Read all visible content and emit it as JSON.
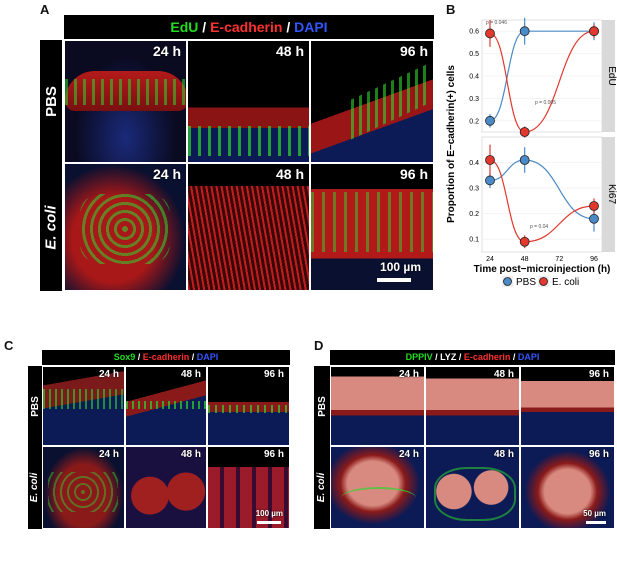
{
  "panels": {
    "A": {
      "label": "A",
      "title": [
        {
          "text": "EdU",
          "color": "#22dd22"
        },
        {
          "text": " / ",
          "color": "#ffffff"
        },
        {
          "text": "E-cadherin",
          "color": "#ff3030"
        },
        {
          "text": " / ",
          "color": "#ffffff"
        },
        {
          "text": "DAPI",
          "color": "#3355ff"
        }
      ],
      "rows": [
        "PBS",
        "E. coli"
      ],
      "times": [
        "24 h",
        "48 h",
        "96 h"
      ],
      "scalebar": "100 µm"
    },
    "B": {
      "label": "B",
      "facet_top": "EdU",
      "facet_bottom": "Ki67",
      "ylabel": "Proportion of E−cadherin(+) cells",
      "xlabel": "Time post−microinjection (h)",
      "pvalues": {
        "edu_24": "p = 0.046",
        "edu_48": "p = 0.005",
        "ki_48": "p = 0.04"
      },
      "legend": [
        "PBS",
        "E. coli"
      ]
    },
    "C": {
      "label": "C",
      "title": [
        {
          "text": "Sox9",
          "color": "#22dd22"
        },
        {
          "text": " / ",
          "color": "#ffffff"
        },
        {
          "text": "E-cadherin",
          "color": "#ff3030"
        },
        {
          "text": " / ",
          "color": "#ffffff"
        },
        {
          "text": "DAPI",
          "color": "#3355ff"
        }
      ],
      "rows": [
        "PBS",
        "E. coli"
      ],
      "times": [
        "24 h",
        "48 h",
        "96 h"
      ],
      "scalebar": "100 µm"
    },
    "D": {
      "label": "D",
      "title": [
        {
          "text": "DPPIV",
          "color": "#22dd22"
        },
        {
          "text": " / ",
          "color": "#ffffff"
        },
        {
          "text": "LYZ",
          "color": "#ffffff"
        },
        {
          "text": " / ",
          "color": "#ffffff"
        },
        {
          "text": "E-cadherin",
          "color": "#ff3030"
        },
        {
          "text": " / ",
          "color": "#ffffff"
        },
        {
          "text": "DAPI",
          "color": "#3355ff"
        }
      ],
      "rows": [
        "PBS",
        "E. coli"
      ],
      "times": [
        "24 h",
        "48 h",
        "96 h"
      ],
      "scalebar": "50 µm"
    }
  },
  "chart_data": [
    {
      "type": "line",
      "title": "",
      "facet": "EdU",
      "x": [
        24,
        48,
        96
      ],
      "xticks": [
        24,
        48,
        72,
        96
      ],
      "ylim": [
        0.15,
        0.65
      ],
      "yticks": [
        0.2,
        0.3,
        0.4,
        0.5,
        0.6
      ],
      "series": [
        {
          "name": "PBS",
          "color": "#4a8ac6",
          "values": [
            0.2,
            0.6,
            0.6
          ],
          "err": [
            0.03,
            0.06,
            0.04
          ]
        },
        {
          "name": "E. coli",
          "color": "#e2382e",
          "values": [
            0.59,
            0.15,
            0.6
          ],
          "err": [
            0.06,
            0.025,
            0.03
          ]
        }
      ]
    },
    {
      "type": "line",
      "title": "",
      "facet": "Ki67",
      "x": [
        24,
        48,
        96
      ],
      "xticks": [
        24,
        48,
        72,
        96
      ],
      "ylim": [
        0.05,
        0.5
      ],
      "yticks": [
        0.1,
        0.2,
        0.3,
        0.4
      ],
      "series": [
        {
          "name": "PBS",
          "color": "#4a8ac6",
          "values": [
            0.33,
            0.41,
            0.18
          ],
          "err": [
            0.03,
            0.05,
            0.05
          ]
        },
        {
          "name": "E. coli",
          "color": "#e2382e",
          "values": [
            0.41,
            0.09,
            0.23
          ],
          "err": [
            0.06,
            0.025,
            0.03
          ]
        }
      ]
    }
  ]
}
